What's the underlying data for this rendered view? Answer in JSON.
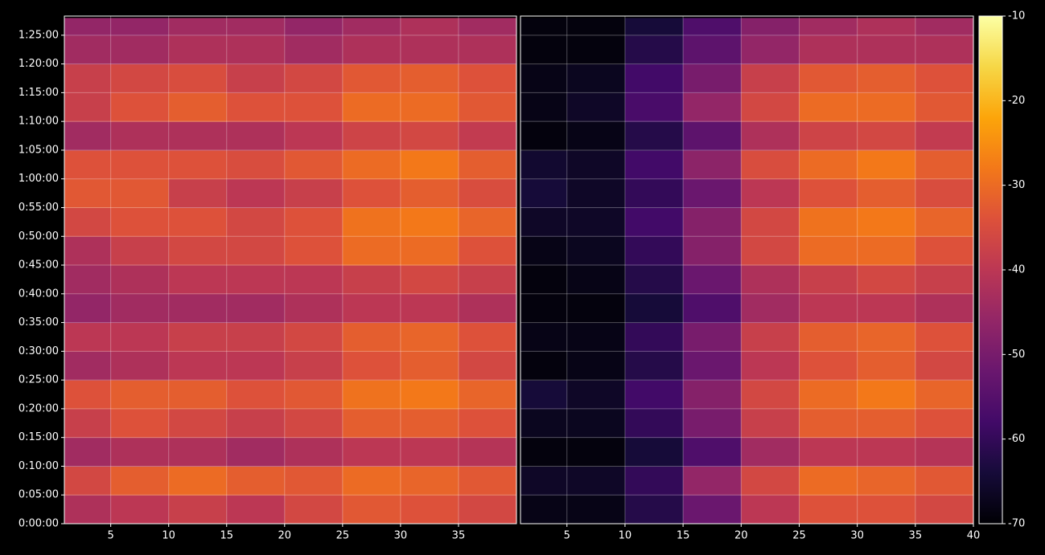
{
  "chart_data": {
    "type": "heatmap",
    "colormap": "inferno",
    "clim": [
      -70,
      -10
    ],
    "cticks": [
      -70,
      -60,
      -50,
      -40,
      -30,
      -20,
      -10
    ],
    "ylim": [
      0,
      5300
    ],
    "ybins": [
      0,
      300,
      600,
      900,
      1200,
      1500,
      1800,
      2100,
      2400,
      2700,
      3000,
      3300,
      3600,
      3900,
      4200,
      4500,
      4800,
      5100,
      5280
    ],
    "yticks": [
      {
        "value": 0,
        "label": "0:00:00"
      },
      {
        "value": 300,
        "label": "0:05:00"
      },
      {
        "value": 600,
        "label": "0:10:00"
      },
      {
        "value": 900,
        "label": "0:15:00"
      },
      {
        "value": 1200,
        "label": "0:20:00"
      },
      {
        "value": 1500,
        "label": "0:25:00"
      },
      {
        "value": 1800,
        "label": "0:30:00"
      },
      {
        "value": 2100,
        "label": "0:35:00"
      },
      {
        "value": 2400,
        "label": "0:40:00"
      },
      {
        "value": 2700,
        "label": "0:45:00"
      },
      {
        "value": 3000,
        "label": "0:50:00"
      },
      {
        "value": 3300,
        "label": "0:55:00"
      },
      {
        "value": 3600,
        "label": "1:00:00"
      },
      {
        "value": 3900,
        "label": "1:05:00"
      },
      {
        "value": 4200,
        "label": "1:10:00"
      },
      {
        "value": 4500,
        "label": "1:15:00"
      },
      {
        "value": 4800,
        "label": "1:20:00"
      },
      {
        "value": 5100,
        "label": "1:25:00"
      }
    ],
    "grid": true,
    "panels": [
      {
        "xlim": [
          1,
          40
        ],
        "xticks": [
          5,
          10,
          15,
          20,
          25,
          30,
          35
        ],
        "xbins": [
          1,
          5,
          10,
          15,
          20,
          25,
          30,
          35,
          40
        ],
        "values": [
          [
            -42,
            -40,
            -38,
            -40,
            -36,
            -33,
            -34,
            -36
          ],
          [
            -36,
            -32,
            -30,
            -32,
            -33,
            -30,
            -31,
            -33
          ],
          [
            -44,
            -42,
            -42,
            -44,
            -42,
            -40,
            -40,
            -41
          ],
          [
            -38,
            -34,
            -36,
            -38,
            -36,
            -32,
            -32,
            -34
          ],
          [
            -34,
            -32,
            -32,
            -34,
            -33,
            -29,
            -28,
            -31
          ],
          [
            -44,
            -42,
            -40,
            -40,
            -38,
            -34,
            -32,
            -36
          ],
          [
            -40,
            -40,
            -38,
            -38,
            -36,
            -32,
            -31,
            -34
          ],
          [
            -46,
            -44,
            -44,
            -44,
            -42,
            -40,
            -40,
            -42
          ],
          [
            -44,
            -42,
            -40,
            -40,
            -40,
            -38,
            -36,
            -38
          ],
          [
            -42,
            -38,
            -36,
            -36,
            -34,
            -30,
            -30,
            -34
          ],
          [
            -36,
            -34,
            -34,
            -36,
            -34,
            -29,
            -28,
            -31
          ],
          [
            -33,
            -33,
            -38,
            -40,
            -38,
            -34,
            -32,
            -35
          ],
          [
            -34,
            -34,
            -34,
            -35,
            -33,
            -30,
            -28,
            -32
          ],
          [
            -44,
            -42,
            -42,
            -42,
            -40,
            -37,
            -36,
            -39
          ],
          [
            -38,
            -34,
            -32,
            -34,
            -34,
            -30,
            -30,
            -33
          ],
          [
            -38,
            -36,
            -35,
            -38,
            -36,
            -33,
            -32,
            -34
          ],
          [
            -44,
            -44,
            -42,
            -42,
            -44,
            -42,
            -42,
            -42
          ],
          [
            -46,
            -46,
            -44,
            -44,
            -46,
            -44,
            -42,
            -44
          ]
        ]
      },
      {
        "xlim": [
          1,
          40
        ],
        "xticks": [
          5,
          10,
          15,
          20,
          25,
          30,
          35,
          40
        ],
        "xbins": [
          1,
          5,
          10,
          15,
          20,
          25,
          30,
          35,
          40
        ],
        "values": [
          [
            -68,
            -68,
            -62,
            -52,
            -40,
            -34,
            -34,
            -36
          ],
          [
            -66,
            -66,
            -60,
            -46,
            -36,
            -30,
            -31,
            -33
          ],
          [
            -69,
            -69,
            -64,
            -56,
            -44,
            -40,
            -40,
            -41
          ],
          [
            -67,
            -67,
            -60,
            -50,
            -38,
            -32,
            -32,
            -34
          ],
          [
            -64,
            -66,
            -58,
            -48,
            -36,
            -30,
            -28,
            -31
          ],
          [
            -69,
            -68,
            -62,
            -52,
            -40,
            -34,
            -32,
            -36
          ],
          [
            -68,
            -68,
            -60,
            -50,
            -38,
            -32,
            -31,
            -34
          ],
          [
            -69,
            -69,
            -64,
            -56,
            -44,
            -40,
            -40,
            -42
          ],
          [
            -69,
            -68,
            -62,
            -52,
            -42,
            -38,
            -36,
            -38
          ],
          [
            -68,
            -67,
            -60,
            -48,
            -36,
            -30,
            -30,
            -34
          ],
          [
            -66,
            -66,
            -58,
            -48,
            -36,
            -29,
            -28,
            -31
          ],
          [
            -64,
            -66,
            -60,
            -52,
            -40,
            -34,
            -32,
            -35
          ],
          [
            -65,
            -66,
            -58,
            -47,
            -35,
            -30,
            -28,
            -32
          ],
          [
            -69,
            -68,
            -62,
            -54,
            -42,
            -37,
            -36,
            -39
          ],
          [
            -68,
            -66,
            -57,
            -46,
            -36,
            -30,
            -30,
            -33
          ],
          [
            -68,
            -67,
            -58,
            -50,
            -38,
            -33,
            -32,
            -34
          ],
          [
            -69,
            -69,
            -62,
            -54,
            -46,
            -42,
            -42,
            -42
          ],
          [
            -69,
            -69,
            -64,
            -56,
            -48,
            -44,
            -42,
            -44
          ]
        ]
      }
    ]
  }
}
